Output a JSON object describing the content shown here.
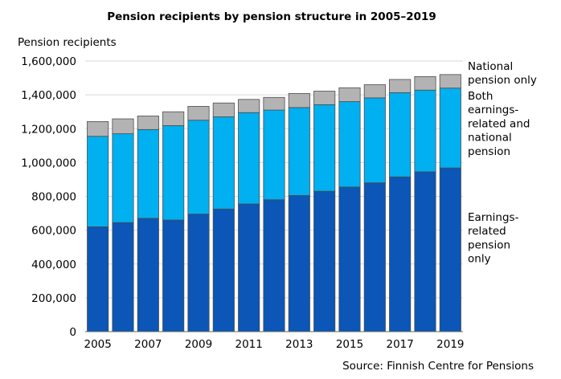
{
  "chart_data": {
    "type": "bar",
    "stacked": true,
    "title": "Pension recipients by pension structure in 2005–2019",
    "ylabel": "Pension recipients",
    "source": "Source: Finnish Centre for Pensions",
    "ylim": [
      0,
      1600000
    ],
    "yticks": [
      0,
      200000,
      400000,
      600000,
      800000,
      1000000,
      1200000,
      1400000,
      1600000
    ],
    "ytick_labels": [
      "0",
      "200,000",
      "400,000",
      "600,000",
      "800,000",
      "1,000,000",
      "1,200,000",
      "1,400,000",
      "1,600,000"
    ],
    "categories": [
      "2005",
      "2006",
      "2007",
      "2008",
      "2009",
      "2010",
      "2011",
      "2012",
      "2013",
      "2014",
      "2015",
      "2016",
      "2017",
      "2018",
      "2019"
    ],
    "xtick_labels": [
      "2005",
      "",
      "2007",
      "",
      "2009",
      "",
      "2011",
      "",
      "2013",
      "",
      "2015",
      "",
      "2017",
      "",
      "2019"
    ],
    "grid": true,
    "legend_placement": "right, beside each series",
    "series": [
      {
        "name": "Earnings-related pension only",
        "legend_lines": [
          "Earnings-",
          "related",
          "pension",
          "only"
        ],
        "color": "#0b56b6",
        "values": [
          620000,
          645000,
          670000,
          660000,
          695000,
          725000,
          755000,
          780000,
          805000,
          830000,
          855000,
          880000,
          915000,
          945000,
          968000
        ]
      },
      {
        "name": "Both earnings-related and national pension",
        "legend_lines": [
          "Both",
          "earnings-",
          "related and",
          "national",
          "pension"
        ],
        "color": "#00b0f0",
        "values": [
          535000,
          525000,
          525000,
          558000,
          555000,
          545000,
          540000,
          530000,
          520000,
          512000,
          505000,
          502000,
          498000,
          483000,
          472000
        ]
      },
      {
        "name": "National pension only",
        "legend_lines": [
          "National",
          "pension only"
        ],
        "color": "#b3b3b3",
        "values": [
          87000,
          88000,
          80000,
          82000,
          82000,
          82000,
          78000,
          75000,
          83000,
          80000,
          82000,
          78000,
          78000,
          80000,
          80000
        ]
      }
    ]
  }
}
